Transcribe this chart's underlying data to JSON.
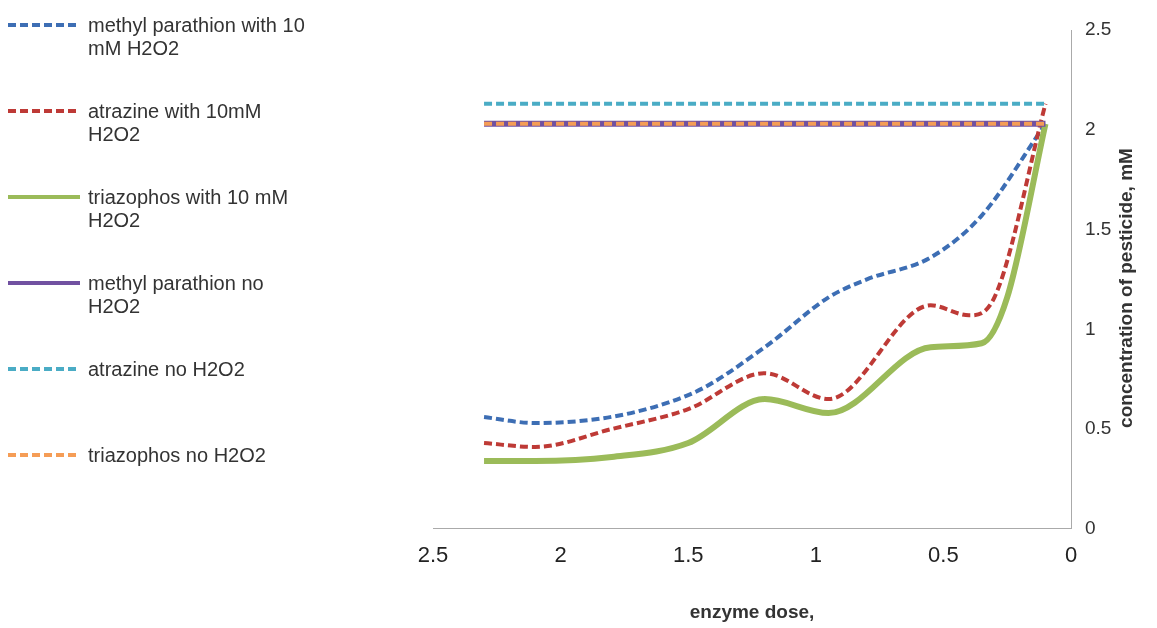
{
  "chart_data": {
    "type": "line",
    "xlabel": "enzyme dose,",
    "ylabel": "concentration of pesticide, mM",
    "xlim": [
      2.5,
      0
    ],
    "xticks": [
      {
        "value": 2.5,
        "label": "2.5"
      },
      2,
      {
        "value": 1.5,
        "label": "1.5"
      },
      1,
      {
        "value": 0.5,
        "label": "0.5"
      },
      0
    ],
    "ylim": [
      0,
      2.5
    ],
    "yticks": [
      0,
      {
        "value": 0.5,
        "label": "0.5"
      },
      1,
      {
        "value": 1.5,
        "label": "1.5"
      },
      2,
      {
        "value": 2.5,
        "label": "2.5"
      }
    ],
    "grid": false,
    "legend": "left",
    "marker": "none",
    "series": [
      {
        "name": "methyl parathion with 10 mM H2O2",
        "color": "#3d6eb4",
        "line_style": "dashed",
        "x": [
          2.3,
          2.1,
          1.5,
          1.2,
          0.95,
          0.8,
          0.55,
          0.35,
          0.1
        ],
        "values": [
          0.56,
          0.53,
          0.67,
          0.91,
          1.16,
          1.25,
          1.36,
          1.57,
          2.03
        ]
      },
      {
        "name": "atrazine with 10mM H2O2",
        "color": "#be3a36",
        "line_style": "dashed",
        "x": [
          2.3,
          2.1,
          1.8,
          1.5,
          1.2,
          0.95,
          0.55,
          0.4,
          0.3,
          0.1
        ],
        "values": [
          0.43,
          0.41,
          0.5,
          0.6,
          0.78,
          0.65,
          1.12,
          1.07,
          1.16,
          2.13
        ]
      },
      {
        "name": "triazophos with 10 mM H2O2",
        "color": "#9bbb59",
        "line_style": "solid",
        "x": [
          2.3,
          2.1,
          1.8,
          1.5,
          1.2,
          0.95,
          0.55,
          0.35,
          0.25,
          0.1
        ],
        "values": [
          0.34,
          0.34,
          0.36,
          0.43,
          0.65,
          0.58,
          0.91,
          0.93,
          1.16,
          2.03
        ]
      },
      {
        "name": "methyl parathion no H2O2",
        "color": "#7151a1",
        "line_style": "solid",
        "x": [
          2.3,
          0.1
        ],
        "values": [
          2.03,
          2.03
        ]
      },
      {
        "name": "atrazine no H2O2",
        "color": "#4aacc5",
        "line_style": "dashed",
        "x": [
          2.3,
          0.1
        ],
        "values": [
          2.13,
          2.13
        ]
      },
      {
        "name": "triazophos no H2O2",
        "color": "#f59d56",
        "line_style": "dashed",
        "x": [
          2.3,
          0.1
        ],
        "values": [
          2.03,
          2.03
        ]
      }
    ]
  }
}
